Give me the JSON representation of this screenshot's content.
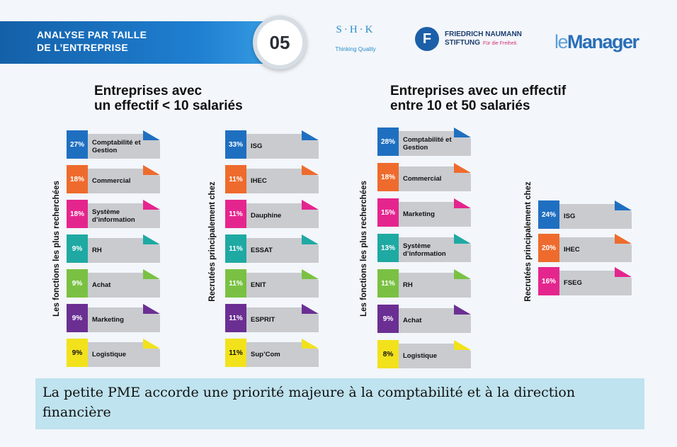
{
  "header": {
    "title_line1": "ANALYSE PAR TAILLE",
    "title_line2": "DE L’ENTREPRISE",
    "number": "05"
  },
  "logos": {
    "shk_mark": "S·H·K",
    "shk_tagline": "Thinking Quality",
    "fnf_line1": "FRIEDRICH NAUMANN",
    "fnf_line2": "STIFTUNG",
    "fnf_tagline": "Für die Freiheit.",
    "manager_prefix": "le",
    "manager_name": "Manager"
  },
  "sections": [
    {
      "title_line1": "Entreprises avec",
      "title_line2": "un effectif < 10 salariés",
      "functions_label": "Les fonctions les plus recherchées",
      "functions": [
        {
          "pct": "27%",
          "label": "Comptabilité et Gestion",
          "color": "#1f6fc1"
        },
        {
          "pct": "18%",
          "label": "Commercial",
          "color": "#ee6b2d"
        },
        {
          "pct": "18%",
          "label": "Système d’information",
          "color": "#e5258e"
        },
        {
          "pct": "9%",
          "label": "RH",
          "color": "#1fa9a3"
        },
        {
          "pct": "9%",
          "label": "Achat",
          "color": "#7ac143"
        },
        {
          "pct": "9%",
          "label": "Marketing",
          "color": "#6b2f93"
        },
        {
          "pct": "9%",
          "label": "Logistique",
          "color": "#f2e21c"
        }
      ],
      "recruited_label": "Recrutées principalement chez",
      "schools": [
        {
          "pct": "33%",
          "label": "ISG",
          "color": "#1f6fc1"
        },
        {
          "pct": "11%",
          "label": "IHEC",
          "color": "#ee6b2d"
        },
        {
          "pct": "11%",
          "label": "Dauphine",
          "color": "#e5258e"
        },
        {
          "pct": "11%",
          "label": "ESSAT",
          "color": "#1fa9a3"
        },
        {
          "pct": "11%",
          "label": "ENIT",
          "color": "#7ac143"
        },
        {
          "pct": "11%",
          "label": "ESPRIT",
          "color": "#6b2f93"
        },
        {
          "pct": "11%",
          "label": "Sup’Com",
          "color": "#f2e21c"
        }
      ]
    },
    {
      "title_line1": "Entreprises avec un effectif",
      "title_line2": "entre 10 et 50 salariés",
      "functions_label": "Les fonctions les plus recherchées",
      "functions": [
        {
          "pct": "28%",
          "label": "Comptabilité et Gestion",
          "color": "#1f6fc1"
        },
        {
          "pct": "18%",
          "label": "Commercial",
          "color": "#ee6b2d"
        },
        {
          "pct": "15%",
          "label": "Marketing",
          "color": "#e5258e"
        },
        {
          "pct": "13%",
          "label": "Système d’information",
          "color": "#1fa9a3"
        },
        {
          "pct": "11%",
          "label": "RH",
          "color": "#7ac143"
        },
        {
          "pct": "9%",
          "label": "Achat",
          "color": "#6b2f93"
        },
        {
          "pct": "8%",
          "label": "Logistique",
          "color": "#f2e21c"
        }
      ],
      "recruited_label": "Recrutées principalement chez",
      "schools": [
        {
          "pct": "24%",
          "label": "ISG",
          "color": "#1f6fc1"
        },
        {
          "pct": "20%",
          "label": "IHEC",
          "color": "#ee6b2d"
        },
        {
          "pct": "16%",
          "label": "FSEG",
          "color": "#e5258e"
        }
      ]
    }
  ],
  "caption": "La petite PME accorde une priorité majeure à la comptabilité et à la direction financière"
}
